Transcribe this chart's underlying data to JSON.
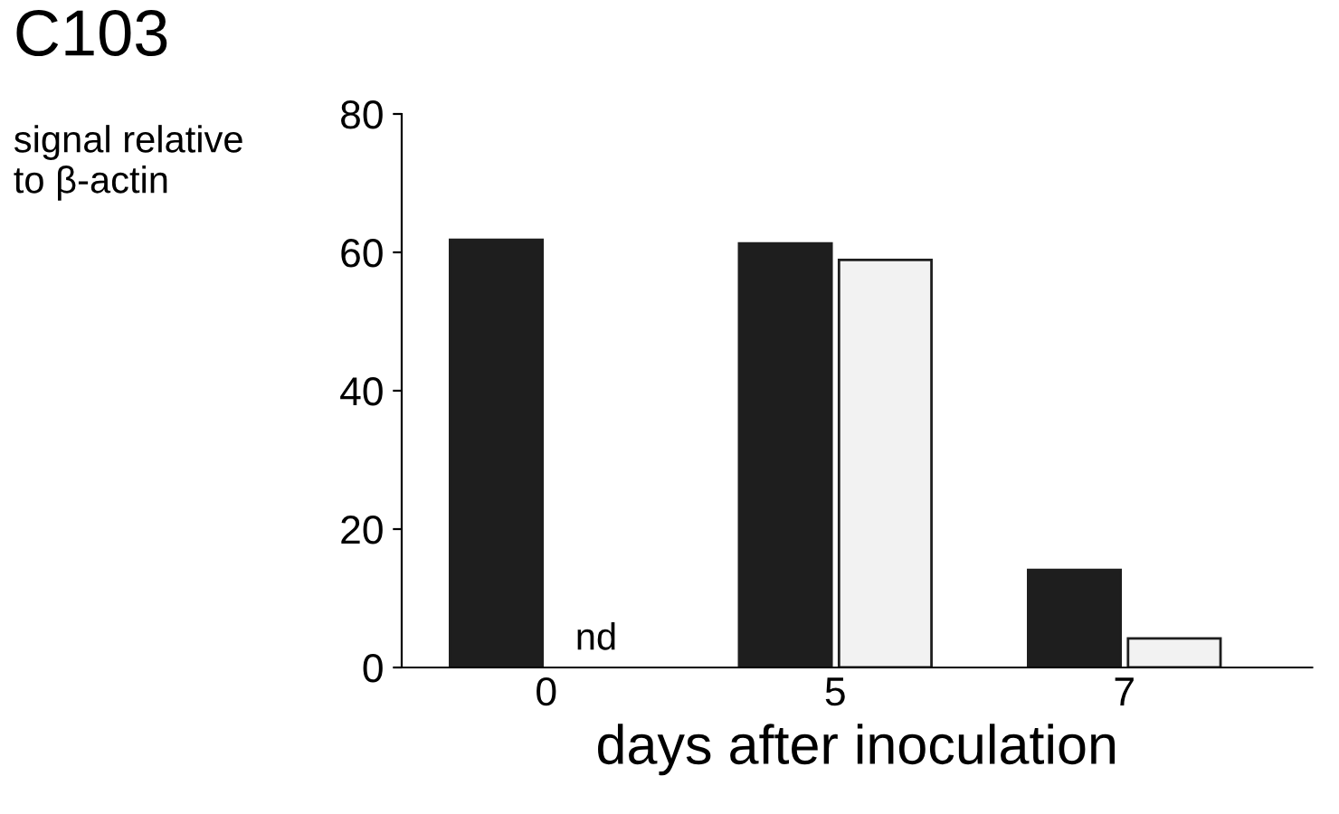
{
  "chart_data": {
    "type": "bar",
    "title": "C103",
    "ylabel": "signal relative\nto β-actin",
    "xlabel": "days after inoculation",
    "categories": [
      "0",
      "5",
      "7"
    ],
    "series": [
      {
        "color": "#1e1e1e",
        "values": [
          61.8,
          61.3,
          14.1
        ]
      },
      {
        "color": "#f2f2f2",
        "values": [
          null,
          58.9,
          4.2
        ]
      }
    ],
    "ylim": [
      0,
      80
    ],
    "yticks": [
      0,
      20,
      40,
      60,
      80
    ],
    "grid": false,
    "legend": false,
    "annotations": [
      {
        "text": "nd",
        "x": "0",
        "y": 0
      }
    ]
  }
}
